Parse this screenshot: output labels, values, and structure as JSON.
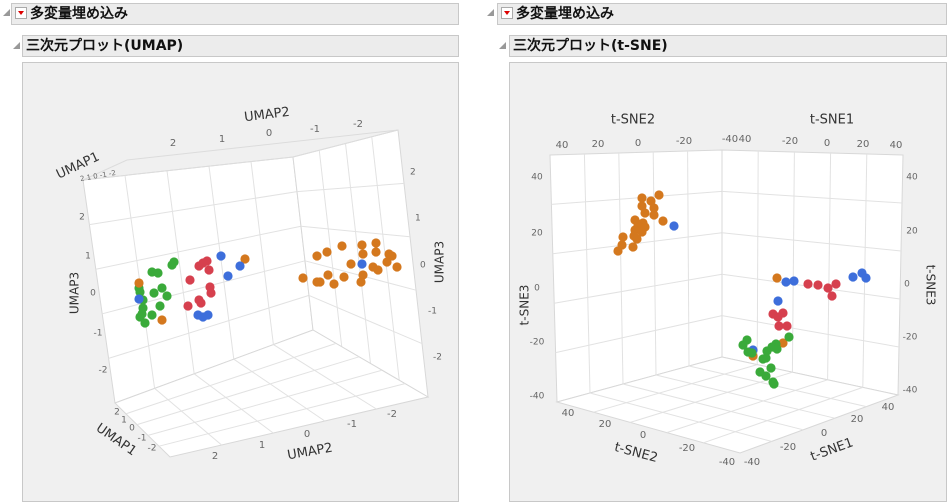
{
  "left": {
    "outline_title": "多変量埋め込み",
    "plot_title": "三次元プロット(UMAP)"
  },
  "right": {
    "outline_title": "多変量埋め込み",
    "plot_title": "三次元プロット(t-SNE)"
  },
  "chart_data": [
    {
      "type": "scatter",
      "title": "三次元プロット(UMAP)",
      "axes": {
        "x": {
          "label": "UMAP1",
          "ticks": [
            "2",
            "1",
            "0",
            "-1",
            "-2"
          ],
          "range": [
            -2,
            2
          ]
        },
        "y": {
          "label": "UMAP2",
          "ticks": [
            "2",
            "1",
            "0",
            "-1",
            "-2"
          ],
          "range": [
            -2,
            2
          ]
        },
        "z": {
          "label": "UMAP3",
          "ticks": [
            "2",
            "1",
            "0",
            "-1",
            "-2"
          ],
          "range": [
            -2,
            2
          ]
        }
      },
      "grid": true,
      "series_colors": {
        "green": "#3aaa3a",
        "red": "#d6404e",
        "blue": "#3d6edb",
        "orange": "#d4781e"
      }
    },
    {
      "type": "scatter",
      "title": "三次元プロット(t-SNE)",
      "axes": {
        "x": {
          "label": "t-SNE1",
          "ticks": [
            "-40",
            "-20",
            "0",
            "20",
            "40"
          ],
          "range": [
            -40,
            40
          ]
        },
        "y": {
          "label": "t-SNE2",
          "ticks": [
            "40",
            "20",
            "0",
            "-20",
            "-40"
          ],
          "range": [
            -40,
            40
          ]
        },
        "z": {
          "label": "t-SNE3",
          "ticks": [
            "40",
            "20",
            "0",
            "-20",
            "-40"
          ],
          "range": [
            -40,
            40
          ]
        }
      },
      "grid": true,
      "series_colors": {
        "green": "#3aaa3a",
        "red": "#d6404e",
        "blue": "#3d6edb",
        "orange": "#d4781e"
      }
    }
  ]
}
